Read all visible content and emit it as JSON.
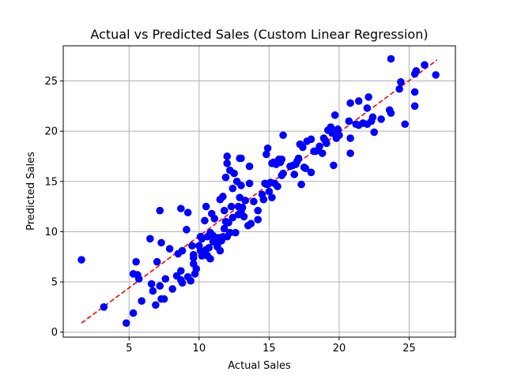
{
  "chart_data": {
    "type": "scatter",
    "title": "Actual vs Predicted Sales (Custom Linear Regression)",
    "xlabel": "Actual Sales",
    "ylabel": "Predicted Sales",
    "xlim": [
      0.3,
      28.3
    ],
    "ylim": [
      -0.5,
      28.5
    ],
    "xticks": [
      5,
      10,
      15,
      20,
      25
    ],
    "yticks": [
      0,
      5,
      10,
      15,
      20,
      25
    ],
    "grid": true,
    "colors": {
      "points": "#0000ff",
      "reference_line": "#ff0000",
      "grid": "#b0b0b0"
    },
    "reference_line": {
      "style": "dashed",
      "from": [
        1.6,
        0.9
      ],
      "to": [
        27.0,
        27.1
      ]
    },
    "points": [
      [
        1.6,
        7.2
      ],
      [
        3.2,
        2.5
      ],
      [
        4.8,
        0.9
      ],
      [
        5.3,
        1.9
      ],
      [
        5.3,
        5.8
      ],
      [
        5.5,
        7.0
      ],
      [
        5.6,
        5.7
      ],
      [
        5.7,
        5.3
      ],
      [
        5.9,
        3.1
      ],
      [
        6.5,
        9.3
      ],
      [
        6.6,
        4.8
      ],
      [
        6.7,
        4.1
      ],
      [
        6.9,
        2.7
      ],
      [
        7.0,
        7.0
      ],
      [
        7.2,
        12.1
      ],
      [
        7.2,
        4.6
      ],
      [
        7.3,
        8.9
      ],
      [
        7.3,
        3.3
      ],
      [
        7.5,
        3.3
      ],
      [
        7.6,
        5.3
      ],
      [
        7.9,
        8.3
      ],
      [
        8.1,
        4.3
      ],
      [
        8.4,
        5.6
      ],
      [
        8.5,
        7.8
      ],
      [
        8.7,
        12.3
      ],
      [
        8.7,
        5.2
      ],
      [
        8.7,
        6.1
      ],
      [
        8.8,
        8.1
      ],
      [
        8.8,
        4.9
      ],
      [
        9.1,
        10.2
      ],
      [
        9.2,
        5.5
      ],
      [
        9.2,
        11.9
      ],
      [
        9.4,
        5.1
      ],
      [
        9.5,
        8.6
      ],
      [
        9.6,
        7.4
      ],
      [
        9.6,
        7.7
      ],
      [
        9.6,
        6.8
      ],
      [
        9.7,
        5.8
      ],
      [
        9.8,
        6.3
      ],
      [
        10.0,
        8.6
      ],
      [
        10.1,
        9.5
      ],
      [
        10.1,
        8.1
      ],
      [
        10.2,
        9.3
      ],
      [
        10.2,
        7.6
      ],
      [
        10.4,
        11.1
      ],
      [
        10.5,
        12.5
      ],
      [
        10.5,
        8.2
      ],
      [
        10.6,
        9.5
      ],
      [
        10.6,
        7.6
      ],
      [
        10.7,
        8.4
      ],
      [
        10.8,
        9.9
      ],
      [
        10.8,
        7.3
      ],
      [
        10.9,
        11.8
      ],
      [
        11.0,
        9.6
      ],
      [
        11.0,
        9.0
      ],
      [
        11.1,
        11.3
      ],
      [
        11.3,
        8.7
      ],
      [
        11.3,
        8.5
      ],
      [
        11.4,
        9.4
      ],
      [
        11.5,
        8.1
      ],
      [
        11.5,
        13.2
      ],
      [
        11.6,
        9.1
      ],
      [
        11.7,
        13.5
      ],
      [
        11.7,
        9.5
      ],
      [
        11.8,
        10.3
      ],
      [
        11.8,
        12.1
      ],
      [
        11.9,
        11.0
      ],
      [
        11.9,
        15.4
      ],
      [
        12.0,
        17.5
      ],
      [
        12.0,
        16.8
      ],
      [
        12.0,
        9.5
      ],
      [
        12.1,
        10.9
      ],
      [
        12.2,
        16.1
      ],
      [
        12.2,
        9.9
      ],
      [
        12.3,
        12.5
      ],
      [
        12.4,
        14.3
      ],
      [
        12.4,
        11.4
      ],
      [
        12.5,
        15.8
      ],
      [
        12.6,
        9.9
      ],
      [
        12.7,
        15.0
      ],
      [
        12.8,
        12.5
      ],
      [
        12.8,
        11.7
      ],
      [
        12.9,
        17.3
      ],
      [
        12.9,
        13.4
      ],
      [
        13.0,
        17.3
      ],
      [
        13.0,
        12.0
      ],
      [
        13.0,
        14.6
      ],
      [
        13.1,
        12.4
      ],
      [
        13.2,
        11.5
      ],
      [
        13.3,
        13.1
      ],
      [
        13.5,
        10.6
      ],
      [
        13.6,
        16.5
      ],
      [
        13.6,
        14.8
      ],
      [
        13.7,
        10.8
      ],
      [
        13.9,
        13.0
      ],
      [
        14.2,
        12.1
      ],
      [
        14.2,
        11.2
      ],
      [
        14.5,
        13.7
      ],
      [
        14.6,
        13.2
      ],
      [
        14.7,
        14.8
      ],
      [
        14.8,
        17.7
      ],
      [
        14.9,
        18.3
      ],
      [
        14.9,
        14.7
      ],
      [
        15.0,
        14.0
      ],
      [
        15.1,
        14.9
      ],
      [
        15.2,
        13.4
      ],
      [
        15.2,
        16.8
      ],
      [
        15.3,
        16.9
      ],
      [
        15.4,
        14.8
      ],
      [
        15.5,
        16.7
      ],
      [
        15.6,
        14.5
      ],
      [
        15.7,
        17.2
      ],
      [
        15.8,
        16.9
      ],
      [
        15.9,
        17.2
      ],
      [
        15.9,
        15.6
      ],
      [
        16.0,
        19.6
      ],
      [
        16.0,
        15.8
      ],
      [
        16.5,
        16.5
      ],
      [
        16.7,
        16.6
      ],
      [
        16.8,
        15.7
      ],
      [
        16.9,
        16.7
      ],
      [
        17.0,
        17.0
      ],
      [
        17.1,
        17.3
      ],
      [
        17.2,
        18.7
      ],
      [
        17.3,
        14.7
      ],
      [
        17.4,
        18.4
      ],
      [
        17.5,
        16.4
      ],
      [
        17.6,
        16.3
      ],
      [
        17.7,
        19.0
      ],
      [
        18.0,
        19.2
      ],
      [
        18.0,
        15.9
      ],
      [
        18.2,
        18.0
      ],
      [
        18.3,
        18.0
      ],
      [
        18.5,
        18.1
      ],
      [
        18.6,
        18.5
      ],
      [
        18.8,
        17.8
      ],
      [
        18.9,
        19.3
      ],
      [
        19.0,
        19.1
      ],
      [
        19.1,
        18.8
      ],
      [
        19.2,
        20.1
      ],
      [
        19.4,
        20.4
      ],
      [
        19.5,
        19.8
      ],
      [
        19.6,
        16.6
      ],
      [
        19.7,
        21.6
      ],
      [
        19.8,
        19.3
      ],
      [
        19.9,
        20.2
      ],
      [
        20.0,
        19.6
      ],
      [
        20.7,
        21.0
      ],
      [
        20.8,
        19.3
      ],
      [
        20.8,
        17.8
      ],
      [
        20.8,
        22.8
      ],
      [
        21.2,
        20.7
      ],
      [
        21.4,
        20.6
      ],
      [
        21.4,
        23.0
      ],
      [
        21.7,
        20.8
      ],
      [
        22.0,
        20.7
      ],
      [
        22.0,
        22.3
      ],
      [
        22.1,
        23.4
      ],
      [
        22.3,
        21.0
      ],
      [
        22.4,
        21.4
      ],
      [
        22.5,
        19.9
      ],
      [
        23.0,
        21.2
      ],
      [
        23.6,
        22.1
      ],
      [
        23.7,
        21.8
      ],
      [
        23.7,
        27.2
      ],
      [
        24.3,
        24.2
      ],
      [
        24.4,
        24.9
      ],
      [
        24.7,
        20.7
      ],
      [
        25.4,
        25.7
      ],
      [
        25.4,
        23.9
      ],
      [
        25.4,
        22.5
      ],
      [
        25.5,
        26.0
      ],
      [
        26.1,
        26.6
      ],
      [
        26.9,
        25.6
      ]
    ]
  }
}
